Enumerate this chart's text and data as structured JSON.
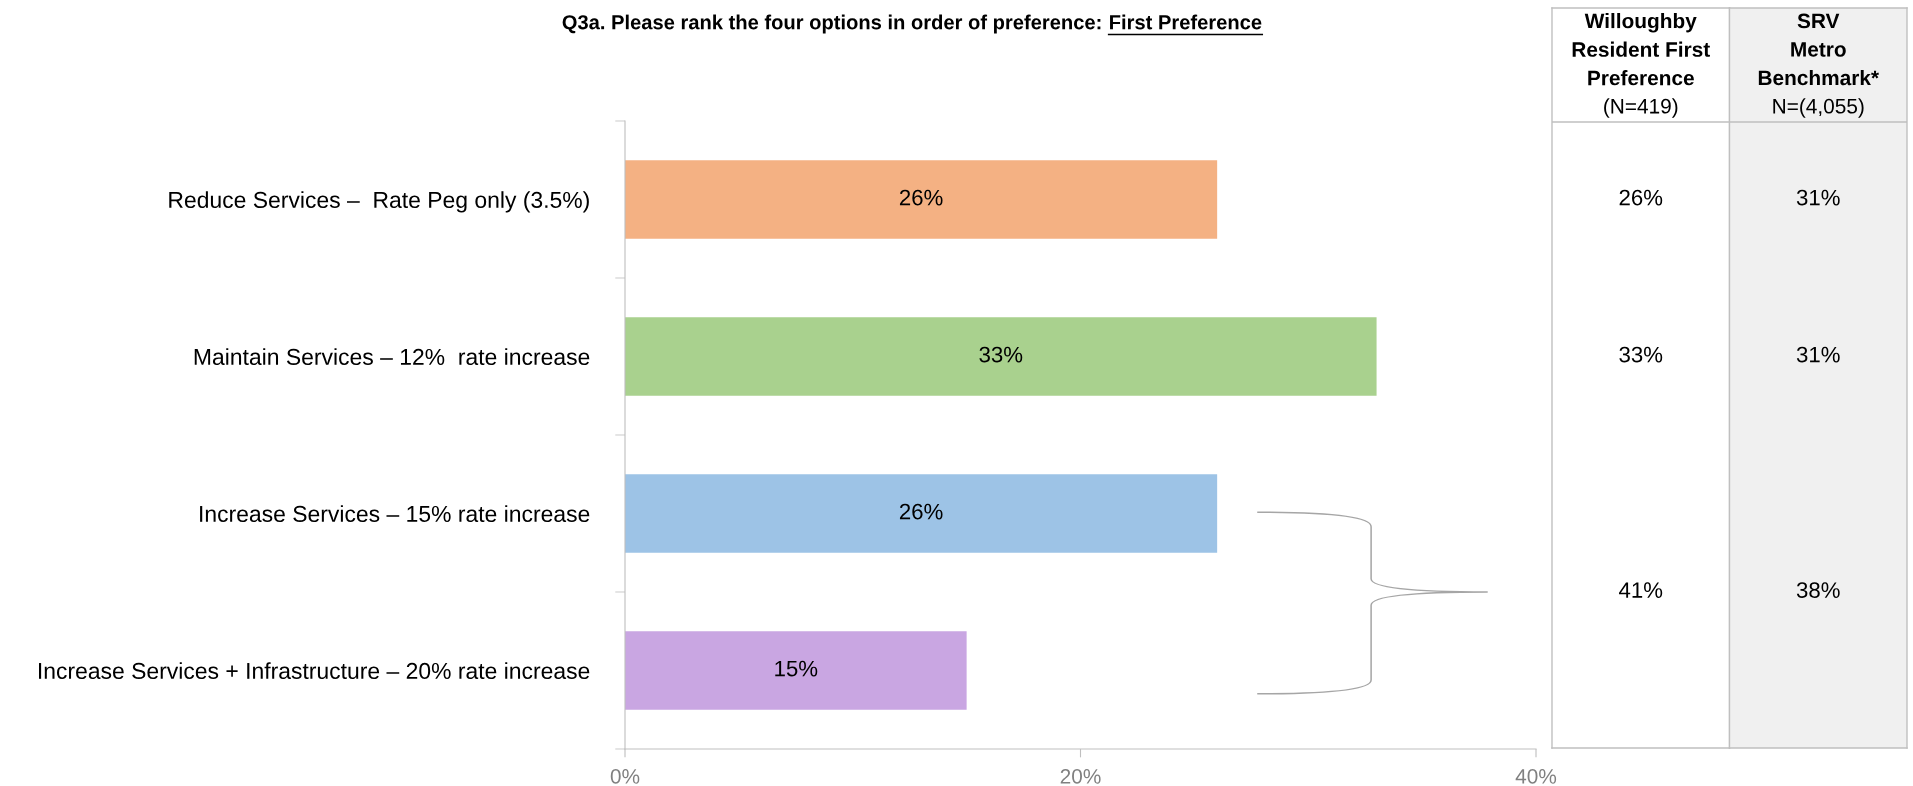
{
  "chart_data": [
    {
      "type": "bar",
      "orientation": "horizontal",
      "title": "Q3a. Please rank the four options in order of preference:",
      "subtitle": "First Preference",
      "categories": [
        "Reduce Services –  Rate Peg only (3.5%)",
        "Maintain Services – 12%  rate increase",
        "Increase Services – 15% rate increase",
        "Increase Services + Infrastructure – 20% rate increase"
      ],
      "values": [
        26,
        33,
        26,
        15
      ],
      "colors": [
        "#f4b183",
        "#a9d18e",
        "#9dc3e6",
        "#c9a6e2"
      ],
      "value_labels": [
        "26%",
        "33%",
        "26%",
        "15%"
      ],
      "xlim": [
        0,
        40
      ],
      "xticks": [
        {
          "value": 0,
          "label": "0%"
        },
        {
          "value": 20,
          "label": "20%"
        },
        {
          "value": 40,
          "label": "40%"
        }
      ]
    },
    {
      "type": "other",
      "title": "Willoughby\nResident First\nPreference",
      "subtitle": "(N=419)",
      "annotations": [
        "26%",
        "33%",
        "41%"
      ]
    },
    {
      "type": "other",
      "title": "SRV\nMetro\nBenchmark*",
      "subtitle": "N=(4,055)",
      "annotations": [
        "31%",
        "31%",
        "38%"
      ]
    }
  ]
}
